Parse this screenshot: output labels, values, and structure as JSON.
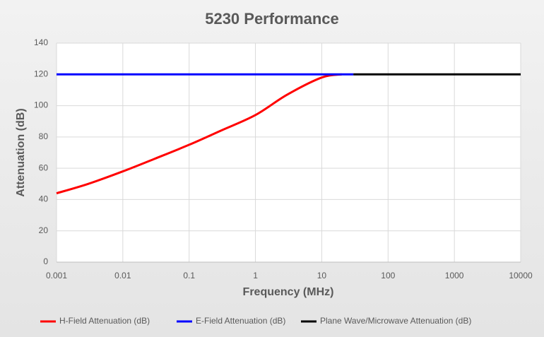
{
  "chart_data": {
    "type": "line",
    "title": "5230 Performance",
    "x_label": "Frequency (MHz)",
    "y_label": "Attenuation (dB)",
    "x_scale": "log",
    "grid": true,
    "legend": "bottom",
    "xlim": [
      0.001,
      10000
    ],
    "xticks": [
      0.001,
      0.01,
      0.1,
      1,
      10,
      100,
      1000,
      10000
    ],
    "ylim": [
      0,
      140
    ],
    "yticks": [
      0,
      20,
      40,
      60,
      80,
      100,
      120,
      140
    ],
    "series": [
      {
        "name": "H-Field Attenuation (dB)",
        "color": "#ff0000",
        "x": [
          0.001,
          0.003,
          0.01,
          0.03,
          0.1,
          0.3,
          1,
          3,
          10,
          20
        ],
        "values": [
          44,
          50,
          58,
          66,
          75,
          84,
          94,
          107,
          118,
          120
        ]
      },
      {
        "name": "E-Field Attenuation (dB)",
        "color": "#0000ff",
        "x": [
          0.001,
          30
        ],
        "values": [
          120,
          120
        ]
      },
      {
        "name": "Plane Wave/Microwave Attenuation (dB)",
        "color": "#000000",
        "x": [
          30,
          10000
        ],
        "values": [
          120,
          120
        ]
      }
    ]
  }
}
